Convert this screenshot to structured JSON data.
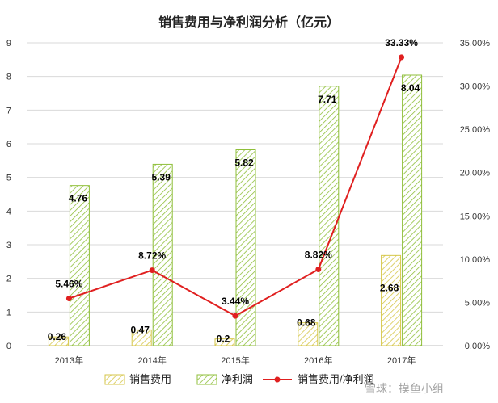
{
  "chart_data": {
    "type": "bar",
    "title": "销售费用与净利润分析（亿元）",
    "categories": [
      "2013年",
      "2014年",
      "2015年",
      "2016年",
      "2017年"
    ],
    "series": [
      {
        "name": "销售费用",
        "type": "bar",
        "axis": "left",
        "values": [
          0.26,
          0.47,
          0.2,
          0.68,
          2.68
        ],
        "labels": [
          "0.26",
          "0.47",
          "0.2",
          "0.68",
          "2.68"
        ],
        "color": "#d6c648",
        "pattern": "diagonal-hatch"
      },
      {
        "name": "净利润",
        "type": "bar",
        "axis": "left",
        "values": [
          4.76,
          5.39,
          5.82,
          7.71,
          8.04
        ],
        "labels": [
          "4.76",
          "5.39",
          "5.82",
          "7.71",
          "8.04"
        ],
        "color": "#8fbf3a",
        "pattern": "diagonal-hatch"
      },
      {
        "name": "销售费用/净利润",
        "type": "line",
        "axis": "right",
        "values": [
          5.46,
          8.72,
          3.44,
          8.82,
          33.33
        ],
        "labels": [
          "5.46%",
          "8.72%",
          "3.44%",
          "8.82%",
          "33.33%"
        ],
        "color": "#e02020"
      }
    ],
    "left_axis": {
      "ylim": [
        0,
        9
      ],
      "ticks": [
        "0",
        "1",
        "2",
        "3",
        "4",
        "5",
        "6",
        "7",
        "8",
        "9"
      ]
    },
    "right_axis": {
      "ylim": [
        0,
        35
      ],
      "ticks": [
        "0.00%",
        "5.00%",
        "10.00%",
        "15.00%",
        "20.00%",
        "25.00%",
        "30.00%",
        "35.00%"
      ]
    },
    "grid": "horizontal",
    "legend_position": "bottom"
  },
  "watermark": {
    "text": "雪球：摸鱼小组"
  }
}
